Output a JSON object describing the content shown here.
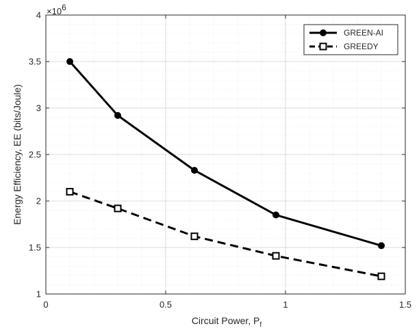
{
  "chart_data": {
    "type": "line",
    "xlabel": "Circuit Power, P",
    "xlabel_sub": "f",
    "ylabel": "Energy Efficiency, EE (bits/Joule)",
    "y_multiplier": "×10",
    "y_multiplier_exp": "6",
    "xlim": [
      0,
      1.5
    ],
    "ylim": [
      1,
      4
    ],
    "x_ticks": [
      0,
      0.5,
      1,
      1.5
    ],
    "x_tick_labels": [
      "0",
      "0.5",
      "1",
      "1.5"
    ],
    "y_ticks": [
      1,
      1.5,
      2,
      2.5,
      3,
      3.5,
      4
    ],
    "y_tick_labels": [
      "1",
      "1.5",
      "2",
      "2.5",
      "3",
      "3.5",
      "4"
    ],
    "grid": true,
    "minor_grid": true,
    "legend_position": "top-right",
    "series": [
      {
        "name": "GREEN-AI",
        "x": [
          0.1,
          0.3,
          0.62,
          0.96,
          1.4
        ],
        "y": [
          3.5,
          2.92,
          2.33,
          1.85,
          1.52
        ],
        "line_style": "solid",
        "marker": "circle",
        "color": "#000000"
      },
      {
        "name": "GREEDY",
        "x": [
          0.1,
          0.3,
          0.62,
          0.96,
          1.4
        ],
        "y": [
          2.1,
          1.92,
          1.62,
          1.41,
          1.19
        ],
        "line_style": "dashed",
        "marker": "square",
        "color": "#000000"
      }
    ]
  }
}
